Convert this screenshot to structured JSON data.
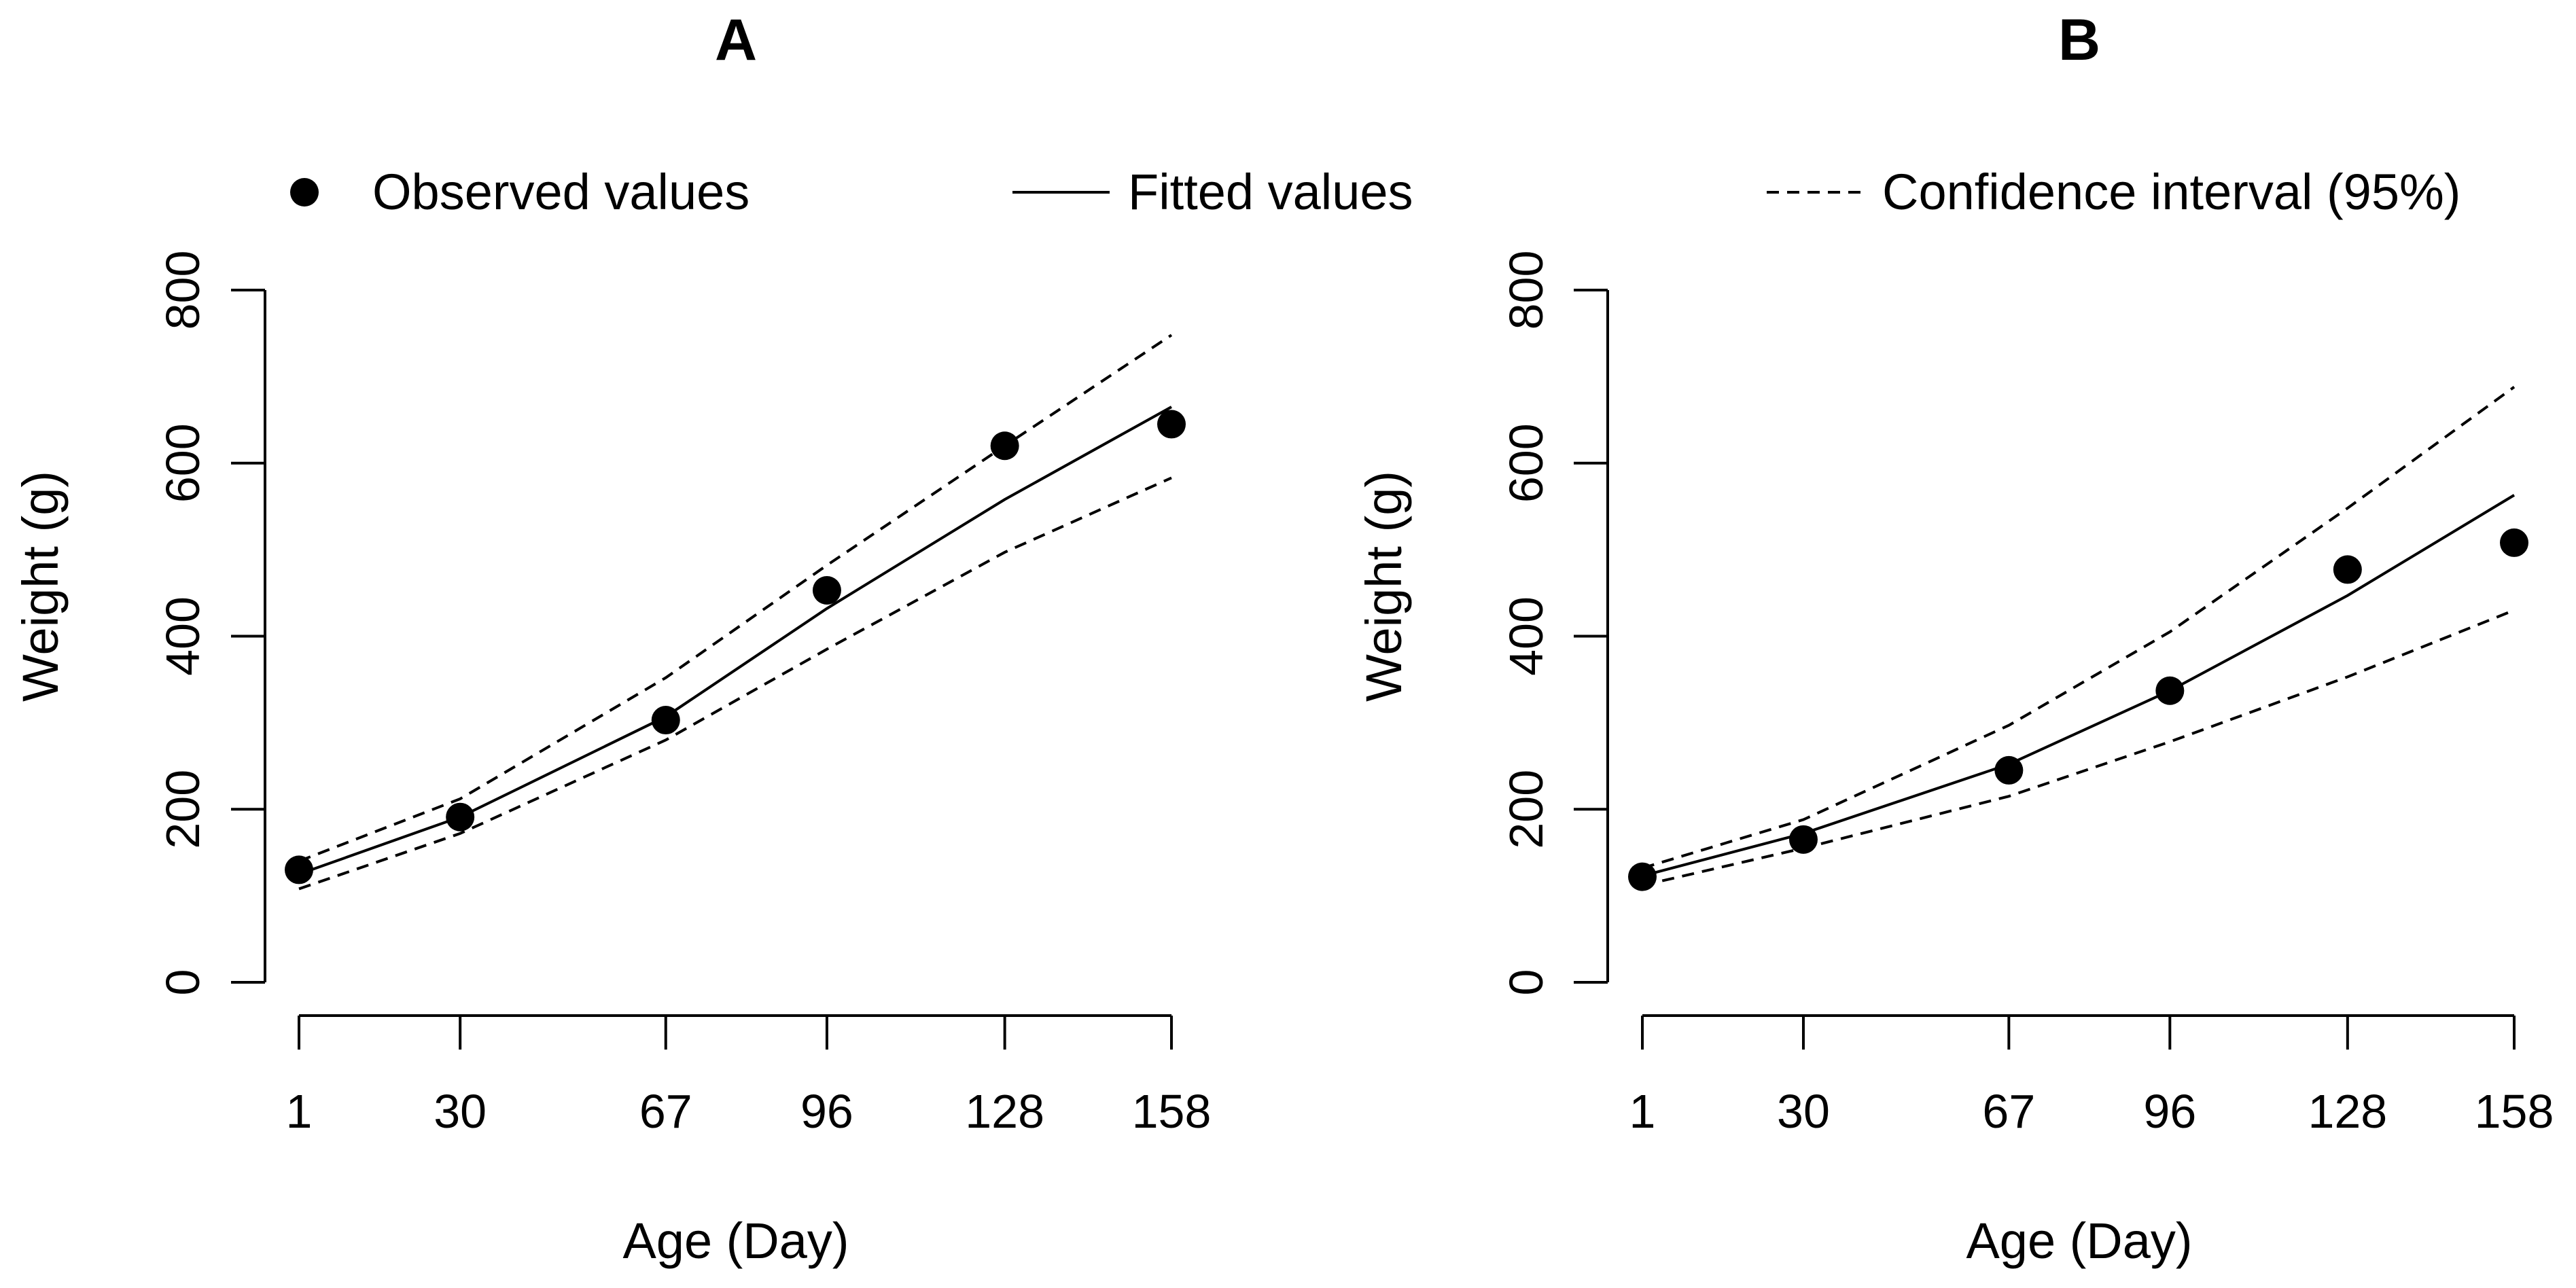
{
  "legend": {
    "observed": "Observed values",
    "fitted": "Fitted values",
    "ci": "Confidence interval (95%)"
  },
  "chart_data": [
    {
      "type": "line",
      "title": "A",
      "xlabel": "Age (Day)",
      "ylabel": "Weight (g)",
      "x": [
        1,
        30,
        67,
        96,
        128,
        158
      ],
      "x_tick_labels": [
        "1",
        "30",
        "67",
        "96",
        "128",
        "158"
      ],
      "y_ticks": [
        0,
        200,
        400,
        600,
        800
      ],
      "ylim": [
        0,
        800
      ],
      "legend_placement": "top",
      "grid": false,
      "series": [
        {
          "name": "Observed values",
          "style": "points",
          "values": [
            130,
            191,
            303,
            453,
            620,
            645
          ]
        },
        {
          "name": "Fitted values",
          "style": "solid",
          "values": [
            125,
            191,
            307,
            432,
            558,
            665
          ]
        },
        {
          "name": "Confidence interval (95%)",
          "style": "dashed",
          "role": "upper",
          "values": [
            140,
            212,
            352,
            482,
            620,
            748
          ]
        },
        {
          "name": "Confidence interval (95%)",
          "style": "dashed",
          "role": "lower",
          "values": [
            108,
            172,
            280,
            385,
            497,
            583
          ]
        }
      ]
    },
    {
      "type": "line",
      "title": "B",
      "xlabel": "Age (Day)",
      "ylabel": "Weight (g)",
      "x": [
        1,
        30,
        67,
        96,
        128,
        158
      ],
      "x_tick_labels": [
        "1",
        "30",
        "67",
        "96",
        "128",
        "158"
      ],
      "y_ticks": [
        0,
        200,
        400,
        600,
        800
      ],
      "ylim": [
        0,
        800
      ],
      "legend_placement": "top",
      "grid": false,
      "series": [
        {
          "name": "Observed values",
          "style": "points",
          "values": [
            122,
            165,
            245,
            337,
            477,
            508
          ]
        },
        {
          "name": "Fitted values",
          "style": "solid",
          "values": [
            123,
            172,
            252,
            337,
            447,
            563
          ]
        },
        {
          "name": "Confidence interval (95%)",
          "style": "dashed",
          "role": "upper",
          "values": [
            132,
            188,
            297,
            405,
            548,
            688
          ]
        },
        {
          "name": "Confidence interval (95%)",
          "style": "dashed",
          "role": "lower",
          "values": [
            112,
            155,
            215,
            278,
            353,
            430
          ]
        }
      ]
    }
  ]
}
